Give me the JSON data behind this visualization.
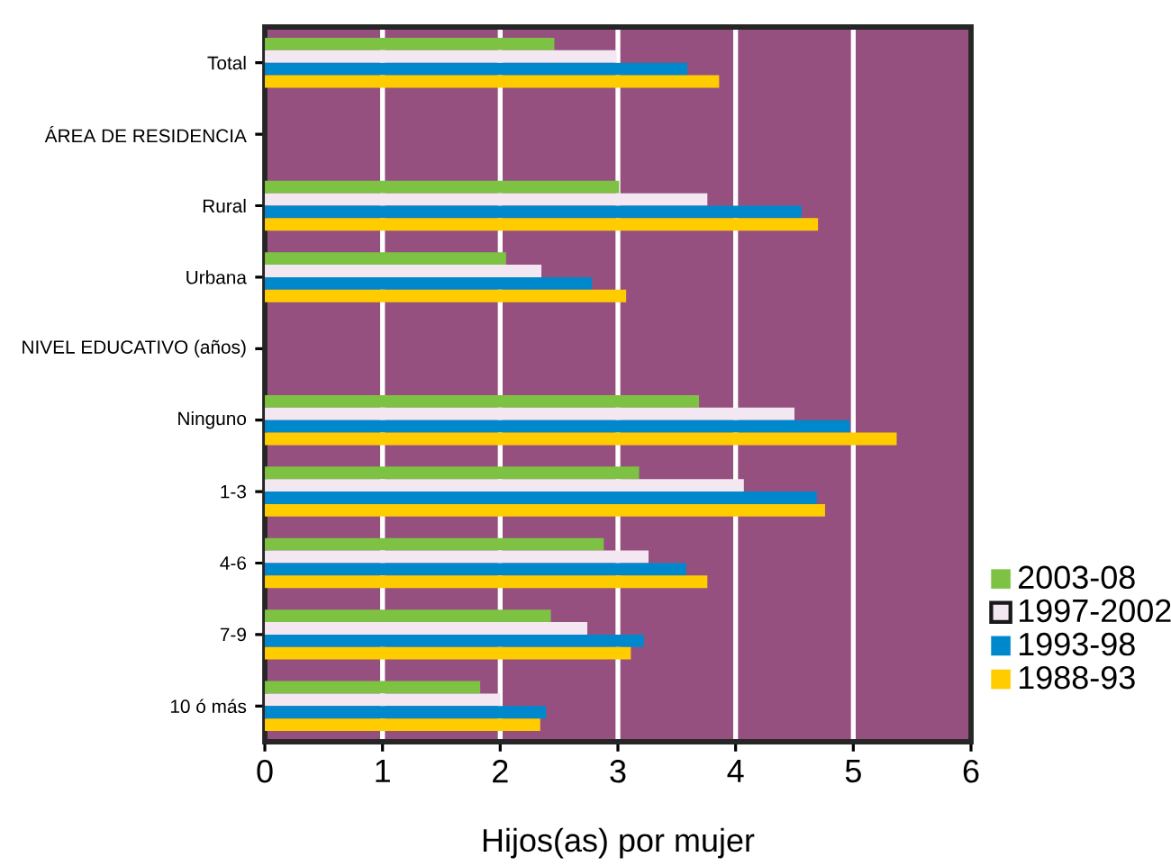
{
  "chart_data": {
    "type": "bar",
    "orientation": "horizontal",
    "categories": [
      "Total",
      "ÁREA DE RESIDENCIA",
      "Rural",
      "Urbana",
      "NIVEL EDUCATIVO (años)",
      "Ninguno",
      "1-3",
      "4-6",
      "7-9",
      "10 ó más"
    ],
    "series": [
      {
        "name": "2003-08",
        "color": "#7dc242",
        "values": [
          2.46,
          null,
          3.01,
          2.05,
          null,
          3.69,
          3.18,
          2.88,
          2.43,
          1.83
        ]
      },
      {
        "name": "1997-2002",
        "color": "#f3e8f2",
        "values": [
          2.99,
          null,
          3.76,
          2.35,
          null,
          4.5,
          4.07,
          3.26,
          2.74,
          2.0
        ]
      },
      {
        "name": "1993-98",
        "color": "#0088cc",
        "values": [
          3.59,
          null,
          4.56,
          2.78,
          null,
          4.97,
          4.69,
          3.58,
          3.22,
          2.39
        ]
      },
      {
        "name": "1988-93",
        "color": "#ffcc00",
        "values": [
          3.86,
          null,
          4.7,
          3.07,
          null,
          5.37,
          4.76,
          3.76,
          3.11,
          2.34
        ]
      }
    ],
    "xlabel": "Hijos(as) por mujer",
    "xlim": [
      0,
      6
    ],
    "xticks": [
      0,
      1,
      2,
      3,
      4,
      5,
      6
    ],
    "grid": "x",
    "legend": "right"
  }
}
